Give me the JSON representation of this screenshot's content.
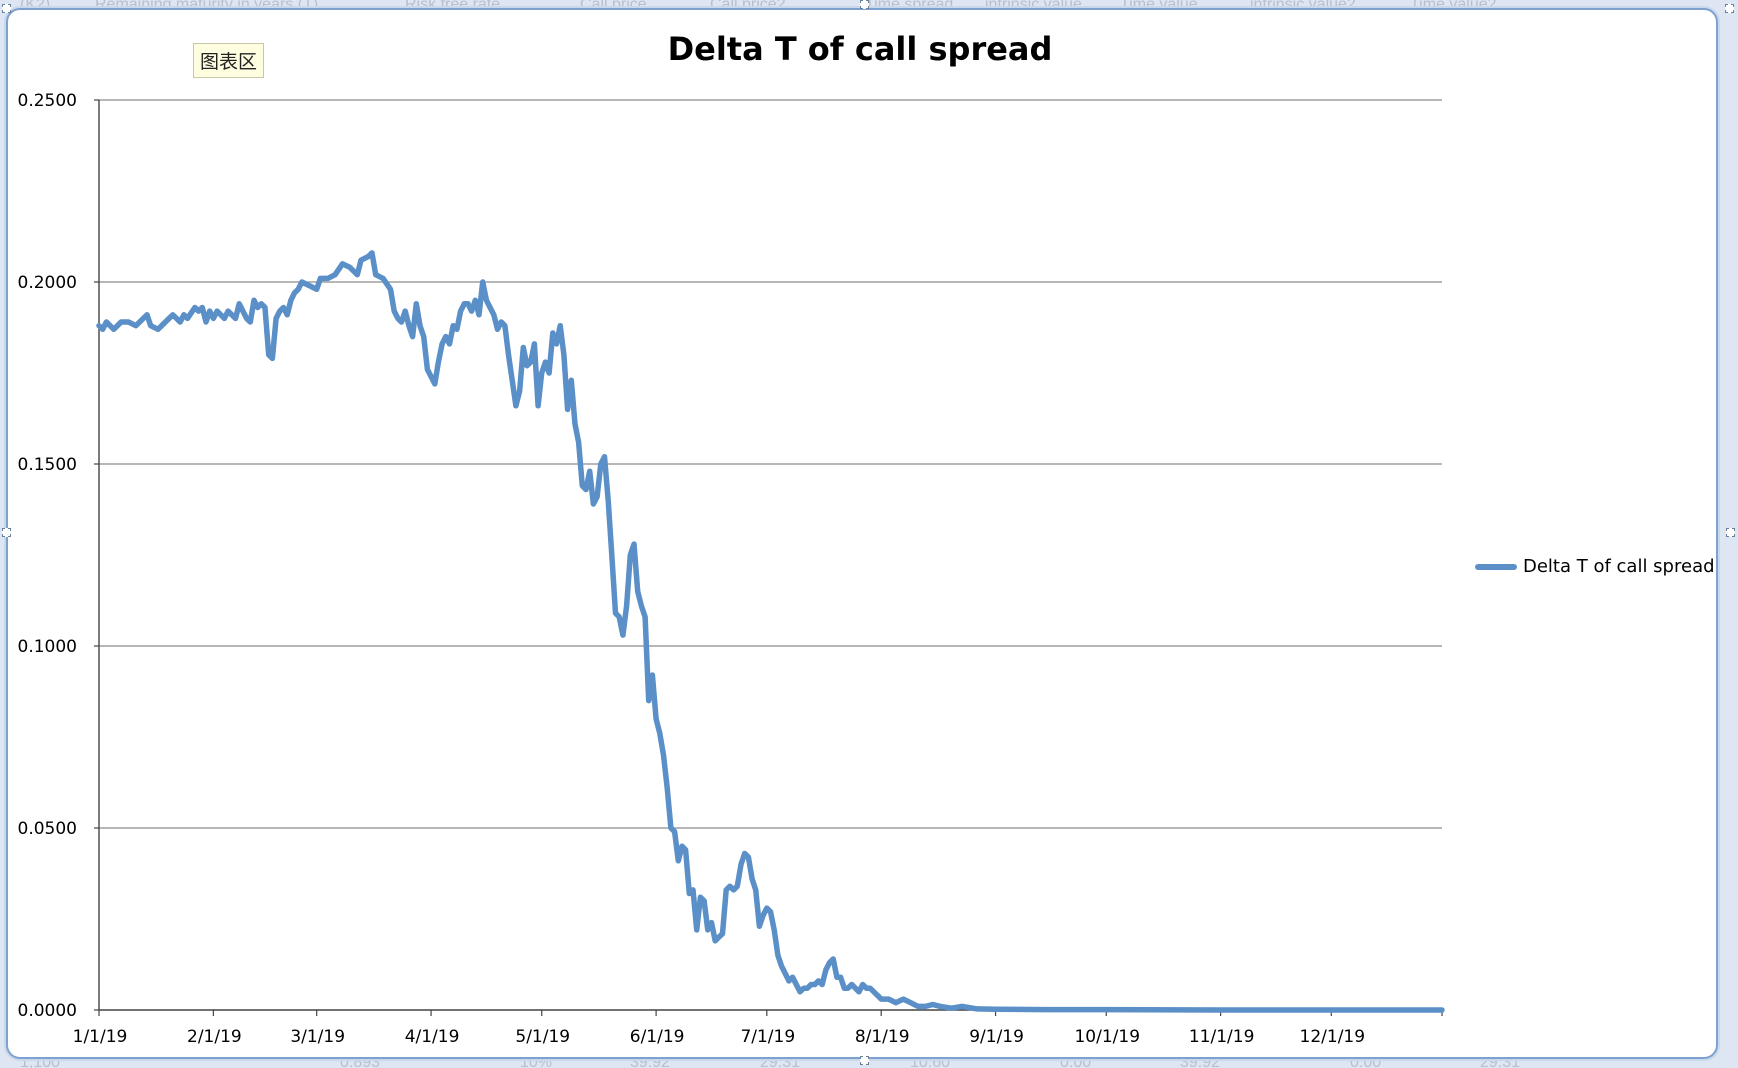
{
  "chart_data": {
    "type": "line",
    "title": "Delta T of call spread",
    "xlabel": "",
    "ylabel": "",
    "x_range": [
      "2019-01-01",
      "2019-12-31"
    ],
    "ylim": [
      0,
      0.25
    ],
    "y_ticks": [
      "0.0000",
      "0.0500",
      "0.1000",
      "0.1500",
      "0.2000",
      "0.2500"
    ],
    "x_ticks": [
      {
        "date": "2019-01-01",
        "label": "1/1/19"
      },
      {
        "date": "2019-02-01",
        "label": "2/1/19"
      },
      {
        "date": "2019-03-01",
        "label": "3/1/19"
      },
      {
        "date": "2019-04-01",
        "label": "4/1/19"
      },
      {
        "date": "2019-05-01",
        "label": "5/1/19"
      },
      {
        "date": "2019-06-01",
        "label": "6/1/19"
      },
      {
        "date": "2019-07-01",
        "label": "7/1/19"
      },
      {
        "date": "2019-08-01",
        "label": "8/1/19"
      },
      {
        "date": "2019-09-01",
        "label": "9/1/19"
      },
      {
        "date": "2019-10-01",
        "label": "10/1/19"
      },
      {
        "date": "2019-11-01",
        "label": "11/1/19"
      },
      {
        "date": "2019-12-01",
        "label": "12/1/19"
      }
    ],
    "grid": {
      "horizontal": true,
      "vertical": false
    },
    "legend_position": "right",
    "series": [
      {
        "name": "Delta T of call spread",
        "color": "#5b8fc7",
        "points": [
          [
            "2019-01-01",
            0.188
          ],
          [
            "2019-01-02",
            0.187
          ],
          [
            "2019-01-03",
            0.189
          ],
          [
            "2019-01-04",
            0.188
          ],
          [
            "2019-01-05",
            0.187
          ],
          [
            "2019-01-07",
            0.189
          ],
          [
            "2019-01-09",
            0.189
          ],
          [
            "2019-01-11",
            0.188
          ],
          [
            "2019-01-13",
            0.19
          ],
          [
            "2019-01-14",
            0.191
          ],
          [
            "2019-01-15",
            0.188
          ],
          [
            "2019-01-17",
            0.187
          ],
          [
            "2019-01-19",
            0.189
          ],
          [
            "2019-01-21",
            0.191
          ],
          [
            "2019-01-23",
            0.189
          ],
          [
            "2019-01-24",
            0.191
          ],
          [
            "2019-01-25",
            0.19
          ],
          [
            "2019-01-27",
            0.193
          ],
          [
            "2019-01-28",
            0.192
          ],
          [
            "2019-01-29",
            0.193
          ],
          [
            "2019-01-30",
            0.189
          ],
          [
            "2019-01-31",
            0.192
          ],
          [
            "2019-02-01",
            0.19
          ],
          [
            "2019-02-02",
            0.192
          ],
          [
            "2019-02-03",
            0.191
          ],
          [
            "2019-02-04",
            0.19
          ],
          [
            "2019-02-05",
            0.192
          ],
          [
            "2019-02-06",
            0.191
          ],
          [
            "2019-02-07",
            0.19
          ],
          [
            "2019-02-08",
            0.194
          ],
          [
            "2019-02-09",
            0.192
          ],
          [
            "2019-02-10",
            0.19
          ],
          [
            "2019-02-11",
            0.189
          ],
          [
            "2019-02-12",
            0.195
          ],
          [
            "2019-02-13",
            0.193
          ],
          [
            "2019-02-14",
            0.194
          ],
          [
            "2019-02-15",
            0.193
          ],
          [
            "2019-02-16",
            0.18
          ],
          [
            "2019-02-17",
            0.179
          ],
          [
            "2019-02-18",
            0.19
          ],
          [
            "2019-02-19",
            0.192
          ],
          [
            "2019-02-20",
            0.193
          ],
          [
            "2019-02-21",
            0.191
          ],
          [
            "2019-02-22",
            0.195
          ],
          [
            "2019-02-23",
            0.197
          ],
          [
            "2019-02-24",
            0.198
          ],
          [
            "2019-02-25",
            0.2
          ],
          [
            "2019-02-27",
            0.199
          ],
          [
            "2019-03-01",
            0.198
          ],
          [
            "2019-03-02",
            0.201
          ],
          [
            "2019-03-04",
            0.201
          ],
          [
            "2019-03-06",
            0.202
          ],
          [
            "2019-03-08",
            0.205
          ],
          [
            "2019-03-10",
            0.204
          ],
          [
            "2019-03-12",
            0.202
          ],
          [
            "2019-03-13",
            0.206
          ],
          [
            "2019-03-15",
            0.207
          ],
          [
            "2019-03-16",
            0.208
          ],
          [
            "2019-03-17",
            0.202
          ],
          [
            "2019-03-19",
            0.201
          ],
          [
            "2019-03-21",
            0.198
          ],
          [
            "2019-03-22",
            0.192
          ],
          [
            "2019-03-23",
            0.19
          ],
          [
            "2019-03-24",
            0.189
          ],
          [
            "2019-03-25",
            0.192
          ],
          [
            "2019-03-26",
            0.188
          ],
          [
            "2019-03-27",
            0.185
          ],
          [
            "2019-03-28",
            0.194
          ],
          [
            "2019-03-29",
            0.188
          ],
          [
            "2019-03-30",
            0.185
          ],
          [
            "2019-03-31",
            0.176
          ],
          [
            "2019-04-01",
            0.174
          ],
          [
            "2019-04-02",
            0.172
          ],
          [
            "2019-04-03",
            0.178
          ],
          [
            "2019-04-04",
            0.183
          ],
          [
            "2019-04-05",
            0.185
          ],
          [
            "2019-04-06",
            0.183
          ],
          [
            "2019-04-07",
            0.188
          ],
          [
            "2019-04-08",
            0.187
          ],
          [
            "2019-04-09",
            0.192
          ],
          [
            "2019-04-10",
            0.194
          ],
          [
            "2019-04-11",
            0.194
          ],
          [
            "2019-04-12",
            0.192
          ],
          [
            "2019-04-13",
            0.195
          ],
          [
            "2019-04-14",
            0.191
          ],
          [
            "2019-04-15",
            0.2
          ],
          [
            "2019-04-16",
            0.195
          ],
          [
            "2019-04-17",
            0.193
          ],
          [
            "2019-04-18",
            0.191
          ],
          [
            "2019-04-19",
            0.187
          ],
          [
            "2019-04-20",
            0.189
          ],
          [
            "2019-04-21",
            0.188
          ],
          [
            "2019-04-22",
            0.18
          ],
          [
            "2019-04-23",
            0.173
          ],
          [
            "2019-04-24",
            0.166
          ],
          [
            "2019-04-25",
            0.17
          ],
          [
            "2019-04-26",
            0.182
          ],
          [
            "2019-04-27",
            0.177
          ],
          [
            "2019-04-28",
            0.178
          ],
          [
            "2019-04-29",
            0.183
          ],
          [
            "2019-04-30",
            0.166
          ],
          [
            "2019-05-01",
            0.175
          ],
          [
            "2019-05-02",
            0.178
          ],
          [
            "2019-05-03",
            0.175
          ],
          [
            "2019-05-04",
            0.186
          ],
          [
            "2019-05-05",
            0.183
          ],
          [
            "2019-05-06",
            0.188
          ],
          [
            "2019-05-07",
            0.18
          ],
          [
            "2019-05-08",
            0.165
          ],
          [
            "2019-05-09",
            0.173
          ],
          [
            "2019-05-10",
            0.161
          ],
          [
            "2019-05-11",
            0.156
          ],
          [
            "2019-05-12",
            0.144
          ],
          [
            "2019-05-13",
            0.143
          ],
          [
            "2019-05-14",
            0.148
          ],
          [
            "2019-05-15",
            0.139
          ],
          [
            "2019-05-16",
            0.141
          ],
          [
            "2019-05-17",
            0.15
          ],
          [
            "2019-05-18",
            0.152
          ],
          [
            "2019-05-19",
            0.14
          ],
          [
            "2019-05-20",
            0.125
          ],
          [
            "2019-05-21",
            0.109
          ],
          [
            "2019-05-22",
            0.108
          ],
          [
            "2019-05-23",
            0.103
          ],
          [
            "2019-05-24",
            0.111
          ],
          [
            "2019-05-25",
            0.125
          ],
          [
            "2019-05-26",
            0.128
          ],
          [
            "2019-05-27",
            0.115
          ],
          [
            "2019-05-28",
            0.111
          ],
          [
            "2019-05-29",
            0.108
          ],
          [
            "2019-05-30",
            0.085
          ],
          [
            "2019-05-31",
            0.092
          ],
          [
            "2019-06-01",
            0.08
          ],
          [
            "2019-06-02",
            0.076
          ],
          [
            "2019-06-03",
            0.07
          ],
          [
            "2019-06-04",
            0.061
          ],
          [
            "2019-06-05",
            0.05
          ],
          [
            "2019-06-06",
            0.049
          ],
          [
            "2019-06-07",
            0.041
          ],
          [
            "2019-06-08",
            0.045
          ],
          [
            "2019-06-09",
            0.044
          ],
          [
            "2019-06-10",
            0.032
          ],
          [
            "2019-06-11",
            0.033
          ],
          [
            "2019-06-12",
            0.022
          ],
          [
            "2019-06-13",
            0.031
          ],
          [
            "2019-06-14",
            0.03
          ],
          [
            "2019-06-15",
            0.022
          ],
          [
            "2019-06-16",
            0.024
          ],
          [
            "2019-06-17",
            0.019
          ],
          [
            "2019-06-18",
            0.02
          ],
          [
            "2019-06-19",
            0.021
          ],
          [
            "2019-06-20",
            0.033
          ],
          [
            "2019-06-21",
            0.034
          ],
          [
            "2019-06-22",
            0.033
          ],
          [
            "2019-06-23",
            0.034
          ],
          [
            "2019-06-24",
            0.04
          ],
          [
            "2019-06-25",
            0.043
          ],
          [
            "2019-06-26",
            0.042
          ],
          [
            "2019-06-27",
            0.036
          ],
          [
            "2019-06-28",
            0.033
          ],
          [
            "2019-06-29",
            0.023
          ],
          [
            "2019-06-30",
            0.026
          ],
          [
            "2019-07-01",
            0.028
          ],
          [
            "2019-07-02",
            0.027
          ],
          [
            "2019-07-03",
            0.022
          ],
          [
            "2019-07-04",
            0.015
          ],
          [
            "2019-07-05",
            0.012
          ],
          [
            "2019-07-06",
            0.01
          ],
          [
            "2019-07-07",
            0.008
          ],
          [
            "2019-07-08",
            0.009
          ],
          [
            "2019-07-09",
            0.007
          ],
          [
            "2019-07-10",
            0.005
          ],
          [
            "2019-07-11",
            0.006
          ],
          [
            "2019-07-12",
            0.006
          ],
          [
            "2019-07-13",
            0.007
          ],
          [
            "2019-07-14",
            0.007
          ],
          [
            "2019-07-15",
            0.008
          ],
          [
            "2019-07-16",
            0.007
          ],
          [
            "2019-07-17",
            0.011
          ],
          [
            "2019-07-18",
            0.013
          ],
          [
            "2019-07-19",
            0.014
          ],
          [
            "2019-07-20",
            0.009
          ],
          [
            "2019-07-21",
            0.009
          ],
          [
            "2019-07-22",
            0.006
          ],
          [
            "2019-07-23",
            0.006
          ],
          [
            "2019-07-24",
            0.007
          ],
          [
            "2019-07-25",
            0.006
          ],
          [
            "2019-07-26",
            0.005
          ],
          [
            "2019-07-27",
            0.007
          ],
          [
            "2019-07-28",
            0.006
          ],
          [
            "2019-07-29",
            0.006
          ],
          [
            "2019-07-30",
            0.005
          ],
          [
            "2019-07-31",
            0.004
          ],
          [
            "2019-08-01",
            0.003
          ],
          [
            "2019-08-03",
            0.003
          ],
          [
            "2019-08-05",
            0.002
          ],
          [
            "2019-08-07",
            0.003
          ],
          [
            "2019-08-09",
            0.002
          ],
          [
            "2019-08-11",
            0.001
          ],
          [
            "2019-08-13",
            0.001
          ],
          [
            "2019-08-15",
            0.0015
          ],
          [
            "2019-08-17",
            0.001
          ],
          [
            "2019-08-20",
            0.0005
          ],
          [
            "2019-08-23",
            0.001
          ],
          [
            "2019-08-27",
            0.0003
          ],
          [
            "2019-09-01",
            0.0002
          ],
          [
            "2019-09-15",
            0.0001
          ],
          [
            "2019-10-01",
            0.0001
          ],
          [
            "2019-11-01",
            0.0
          ],
          [
            "2019-12-01",
            0.0
          ],
          [
            "2019-12-31",
            0.0
          ]
        ]
      }
    ]
  }
}
